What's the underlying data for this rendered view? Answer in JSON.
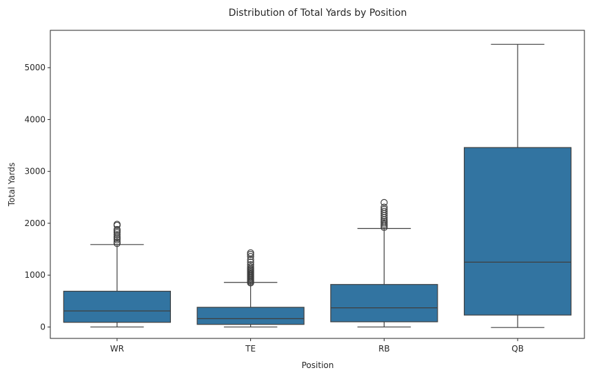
{
  "chart_data": {
    "type": "box",
    "title": "Distribution of Total Yards by Position",
    "xlabel": "Position",
    "ylabel": "Total Yards",
    "ylim": [
      -220,
      5720
    ],
    "yticks": [
      0,
      1000,
      2000,
      3000,
      4000,
      5000
    ],
    "grid": false,
    "box_color": "#3274a1",
    "line_color": "#3f3f3f",
    "categories": [
      "WR",
      "TE",
      "RB",
      "QB"
    ],
    "boxes": [
      {
        "category": "WR",
        "whisker_low": 0,
        "q1": 90,
        "median": 310,
        "q3": 690,
        "whisker_high": 1590,
        "outliers": [
          1610,
          1640,
          1680,
          1710,
          1740,
          1780,
          1820,
          1850,
          1880,
          1960,
          1980
        ]
      },
      {
        "category": "TE",
        "whisker_low": 0,
        "q1": 50,
        "median": 160,
        "q3": 380,
        "whisker_high": 860,
        "outliers": [
          850,
          870,
          890,
          910,
          930,
          950,
          970,
          990,
          1010,
          1030,
          1050,
          1070,
          1090,
          1110,
          1130,
          1160,
          1200,
          1250,
          1300,
          1360,
          1400,
          1430
        ]
      },
      {
        "category": "RB",
        "whisker_low": 0,
        "q1": 100,
        "median": 370,
        "q3": 820,
        "whisker_high": 1900,
        "outliers": [
          1920,
          1950,
          1980,
          2010,
          2040,
          2070,
          2110,
          2150,
          2190,
          2230,
          2270,
          2310,
          2400
        ]
      },
      {
        "category": "QB",
        "whisker_low": -10,
        "q1": 230,
        "median": 1250,
        "q3": 3460,
        "whisker_high": 5450,
        "outliers": []
      }
    ]
  }
}
